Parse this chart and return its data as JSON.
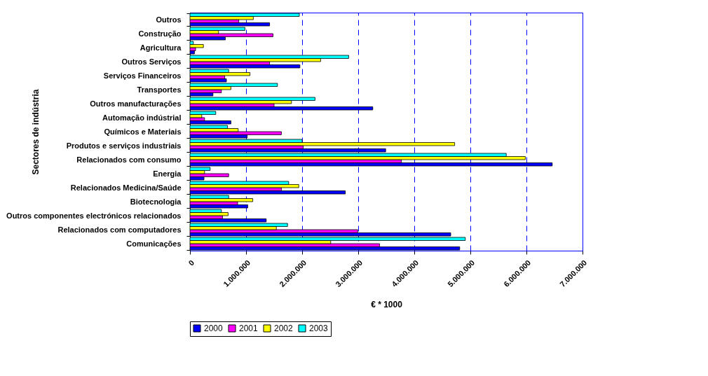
{
  "chart_data": {
    "type": "bar",
    "orientation": "horizontal",
    "xlabel": "€ * 1000",
    "ylabel": "Sectores de indústria",
    "categories": [
      "Outros",
      "Construção",
      "Agricultura",
      "Outros Serviços",
      "Serviços Financeiros",
      "Transportes",
      "Outros manufacturações",
      "Automação indústrial",
      "Químicos e Materiais",
      "Produtos e serviços industriais",
      "Relacionados com consumo",
      "Energia",
      "Relacionados Medicina/Saúde",
      "Biotecnologia",
      "Outros componentes electrónicos relacionados",
      "Relacionados com computadores",
      "Comunicações"
    ],
    "series": [
      {
        "name": "2000",
        "color": "#0000ff",
        "values": [
          1420000,
          630000,
          80000,
          1960000,
          650000,
          410000,
          3260000,
          730000,
          1020000,
          3490000,
          6460000,
          250000,
          2770000,
          1030000,
          1360000,
          4650000,
          4810000
        ]
      },
      {
        "name": "2001",
        "color": "#ff00ff",
        "values": [
          870000,
          1480000,
          100000,
          1420000,
          620000,
          560000,
          1500000,
          260000,
          1630000,
          2020000,
          3770000,
          690000,
          1630000,
          850000,
          580000,
          2990000,
          3380000
        ]
      },
      {
        "name": "2002",
        "color": "#ffff00",
        "values": [
          1130000,
          510000,
          240000,
          2330000,
          1070000,
          730000,
          1810000,
          210000,
          860000,
          4720000,
          5980000,
          260000,
          1940000,
          1120000,
          680000,
          1540000,
          2510000
        ]
      },
      {
        "name": "2003",
        "color": "#00ffff",
        "values": [
          1950000,
          980000,
          60000,
          2830000,
          690000,
          1560000,
          2230000,
          460000,
          670000,
          2000000,
          5640000,
          360000,
          1760000,
          690000,
          560000,
          1740000,
          4910000
        ]
      }
    ],
    "xlim": [
      0,
      7000000
    ],
    "xticks": [
      0,
      {
        "value": 1000000,
        "label": "1.000.000"
      },
      {
        "value": 2000000,
        "label": "2.000.000"
      },
      {
        "value": 3000000,
        "label": "3.000.000"
      },
      {
        "value": 4000000,
        "label": "4.000.000"
      },
      {
        "value": 5000000,
        "label": "5.000.000"
      },
      {
        "value": 6000000,
        "label": "6.000.000"
      },
      {
        "value": 7000000,
        "label": "7.000.000"
      }
    ],
    "grid": "x",
    "legend": "bottom"
  }
}
